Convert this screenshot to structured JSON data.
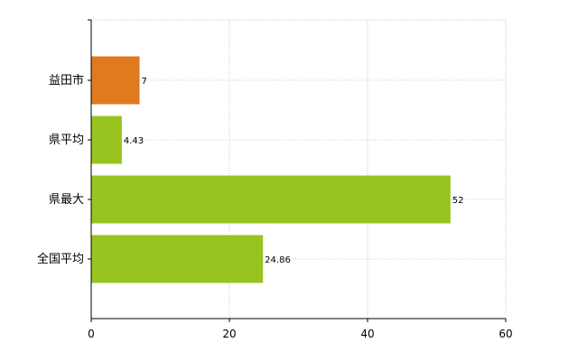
{
  "chart_data": {
    "type": "bar",
    "orientation": "horizontal",
    "categories": [
      "益田市",
      "県平均",
      "県最大",
      "全国平均"
    ],
    "values": [
      7,
      4.43,
      52,
      24.86
    ],
    "value_labels": [
      "7",
      "4.43",
      "52",
      "24.86"
    ],
    "bar_colors": [
      "#e07a1f",
      "#99c31f",
      "#99c31f",
      "#99c31f"
    ],
    "xlim": [
      0,
      60
    ],
    "x_ticks": [
      0,
      20,
      40,
      60
    ],
    "x_tick_labels": [
      "0",
      "20",
      "40",
      "60"
    ],
    "grid": true,
    "grid_style": "dotted",
    "legend": "none",
    "title": "",
    "xlabel": "",
    "ylabel": ""
  }
}
